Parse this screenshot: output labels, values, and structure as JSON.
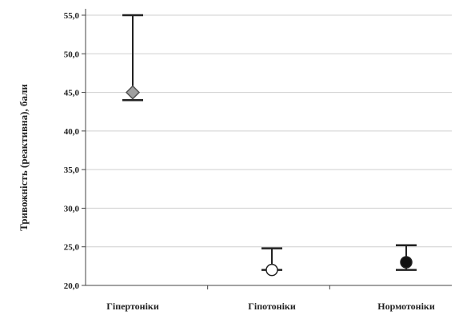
{
  "chart_data": {
    "type": "scatter",
    "title": "",
    "xlabel": "",
    "ylabel": "Тривожність (реактивна), бали",
    "categories": [
      "Гіпертоніки",
      "Гіпотоніки",
      "Нормотоніки"
    ],
    "ylim": [
      20,
      55
    ],
    "yticks": [
      "20,0",
      "25,0",
      "30,0",
      "35,0",
      "40,0",
      "45,0",
      "50,0",
      "55,0"
    ],
    "grid": true,
    "legend": "none",
    "points": [
      {
        "category": "Гіпертоніки",
        "value": 45.0,
        "upper": 55.0,
        "lower": 44.0,
        "marker": "diamond",
        "fill": "#a0a0a0"
      },
      {
        "category": "Гіпотоніки",
        "value": 22.0,
        "upper": 24.8,
        "lower": 22.0,
        "marker": "circle",
        "fill": "#ffffff"
      },
      {
        "category": "Нормотоніки",
        "value": 23.0,
        "upper": 25.2,
        "lower": 22.0,
        "marker": "circle",
        "fill": "#111111"
      }
    ],
    "colors": {
      "axis": "#444444",
      "grid": "#cfcfcf",
      "errorbar": "#222222"
    }
  }
}
